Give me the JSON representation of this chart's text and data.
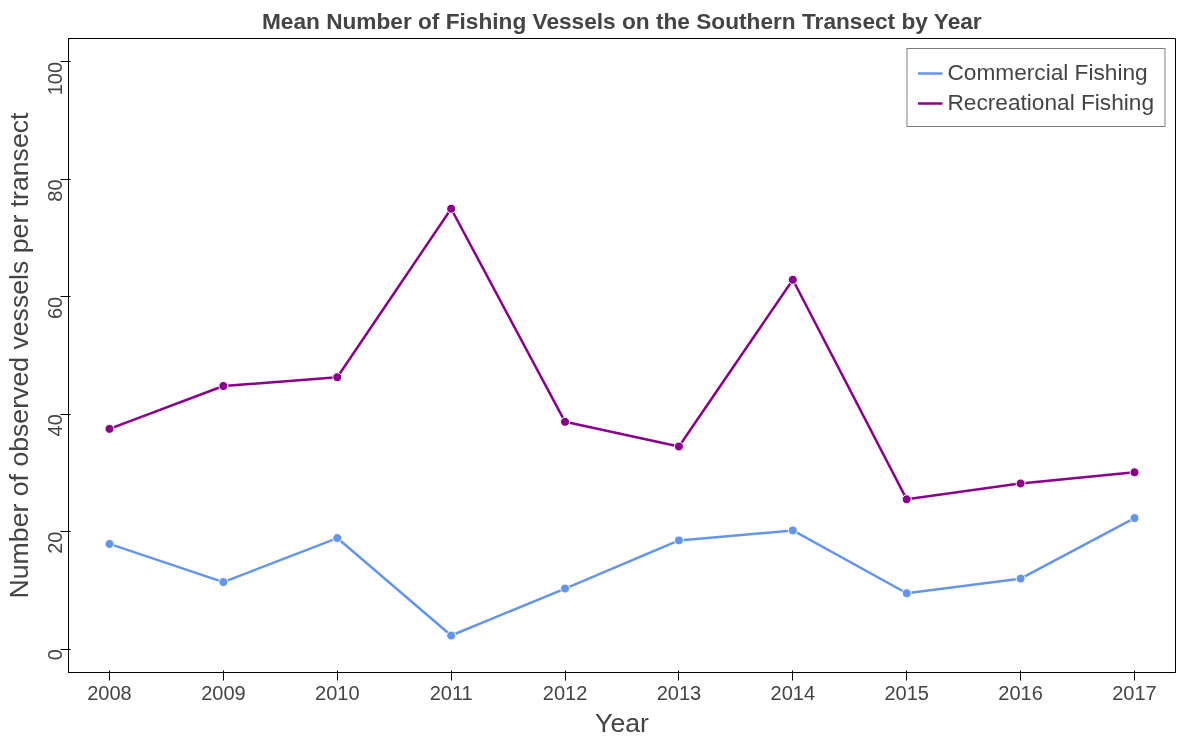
{
  "chart_data": {
    "type": "line",
    "title": "Mean Number of Fishing Vessels on the Southern Transect by Year",
    "xlabel": "Year",
    "ylabel": "Number of observed vessels per transect",
    "x": [
      2008,
      2009,
      2010,
      2011,
      2012,
      2013,
      2014,
      2015,
      2016,
      2017
    ],
    "series": [
      {
        "name": "Commercial Fishing",
        "color": "#6495ed",
        "values": [
          17.9,
          11.4,
          18.9,
          2.3,
          10.3,
          18.5,
          20.2,
          9.5,
          12.0,
          22.3
        ]
      },
      {
        "name": "Recreational Fishing",
        "color": "#8b008b",
        "values": [
          37.5,
          44.8,
          46.3,
          75.0,
          38.7,
          34.5,
          62.9,
          25.5,
          28.2,
          30.1
        ]
      }
    ],
    "xlim": [
      2007.64,
      2017.36
    ],
    "xticks": [
      2008,
      2009,
      2010,
      2011,
      2012,
      2013,
      2014,
      2015,
      2016,
      2017
    ],
    "ylim": [
      -4,
      104
    ],
    "yticks": [
      0,
      20,
      40,
      60,
      80,
      100
    ],
    "grid": false,
    "legend": "top right",
    "marker": "circle",
    "line_style": "solid"
  }
}
